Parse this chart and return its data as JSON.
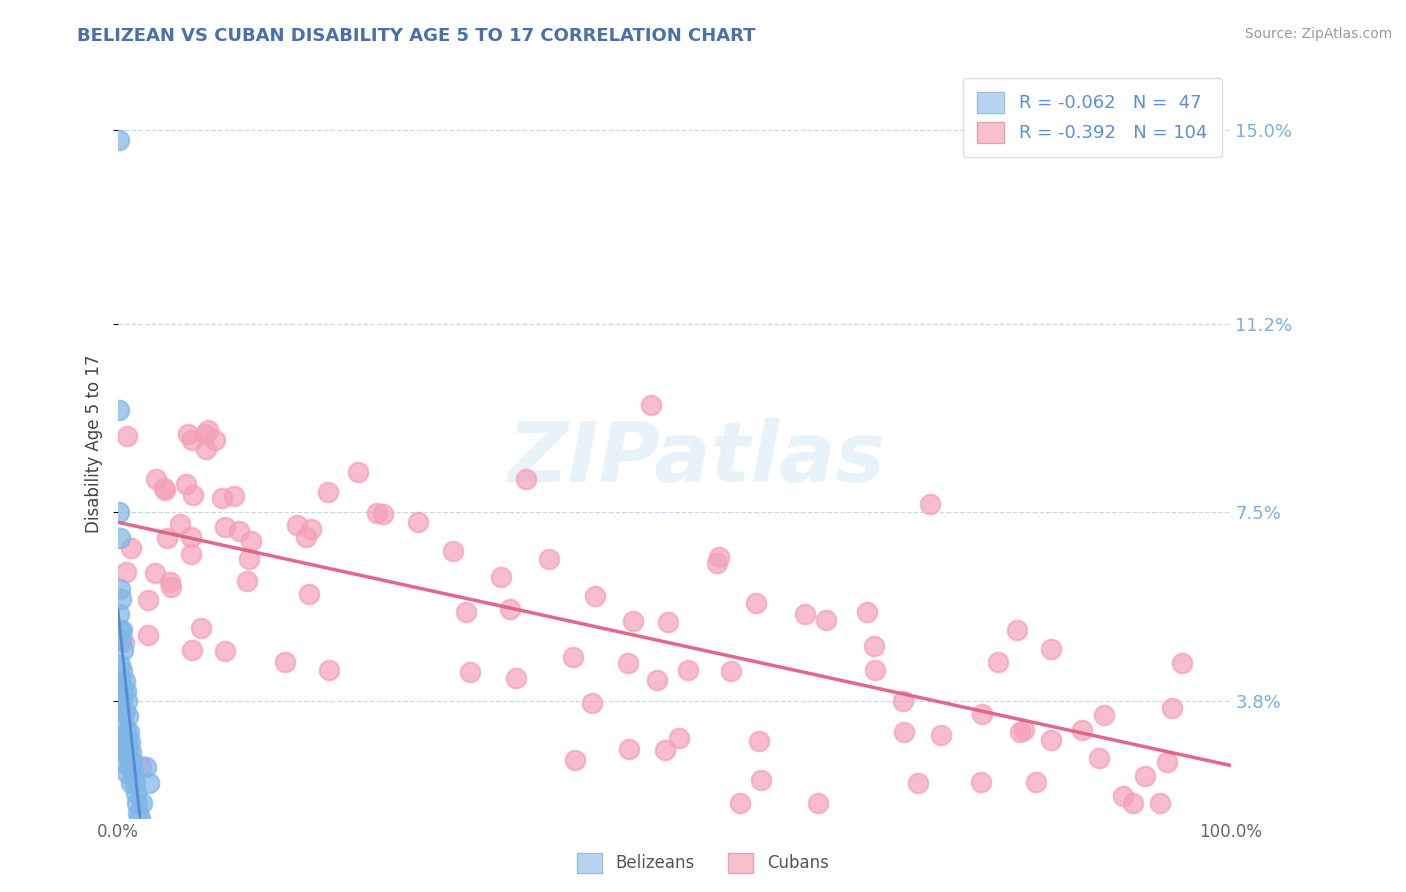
{
  "title": "BELIZEAN VS CUBAN DISABILITY AGE 5 TO 17 CORRELATION CHART",
  "source": "Source: ZipAtlas.com",
  "ylabel": "Disability Age 5 to 17",
  "ytick_labels": [
    "3.8%",
    "7.5%",
    "11.2%",
    "15.0%"
  ],
  "ytick_values": [
    0.038,
    0.075,
    0.112,
    0.15
  ],
  "xmin": 0.0,
  "xmax": 1.0,
  "ymin": 0.015,
  "ymax": 0.162,
  "belizean_color": "#7EB6E8",
  "cuban_color": "#F4A0B8",
  "belizean_line_color": "#5588CC",
  "cuban_line_color": "#E06080",
  "legend_text_color": "#5B8FD4",
  "watermark": "ZIPatlas",
  "R_belizean": -0.062,
  "N_belizean": 47,
  "R_cuban": -0.392,
  "N_cuban": 104
}
